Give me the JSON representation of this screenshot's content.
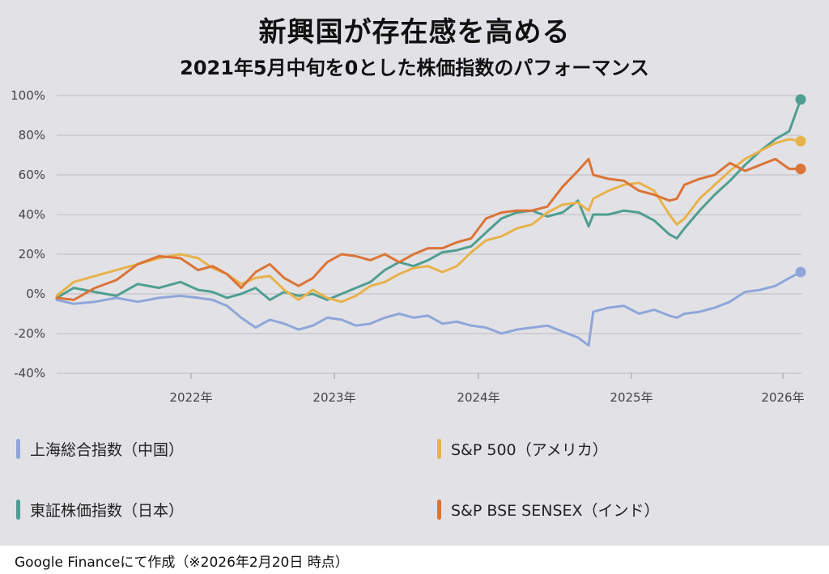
{
  "header": {
    "title": "新興国が存在感を高める",
    "subtitle": "2021年5月中旬を0とした株価指数のパフォーマンス"
  },
  "footer": {
    "source": "Google Financeにて作成（※2026年2月20日 時点）"
  },
  "chart_data": {
    "type": "line",
    "title": "新興国が存在感を高める",
    "subtitle": "2021年5月中旬を0とした株価指数のパフォーマンス",
    "xlabel": "",
    "ylabel": "",
    "ylim": [
      -40,
      100
    ],
    "xlim": [
      2021.37,
      2026.14
    ],
    "grid": true,
    "legend_position": "bottom",
    "y_ticks": [
      "100%",
      "80%",
      "60%",
      "40%",
      "20%",
      "0%",
      "-20%",
      "-40%"
    ],
    "y_tick_values": [
      100,
      80,
      60,
      40,
      20,
      0,
      -20,
      -40
    ],
    "x_ticks": [
      "2022年",
      "2023年",
      "2024年",
      "2025年",
      "2026年"
    ],
    "x_tick_values": [
      2022,
      2023,
      2024,
      2025,
      2026
    ],
    "x": [
      2021.37,
      2021.45,
      2021.55,
      2021.65,
      2021.75,
      2021.85,
      2021.95,
      2022.05,
      2022.15,
      2022.25,
      2022.35,
      2022.45,
      2022.55,
      2022.65,
      2022.75,
      2022.85,
      2022.95,
      2023.05,
      2023.15,
      2023.25,
      2023.35,
      2023.45,
      2023.55,
      2023.65,
      2023.75,
      2023.85,
      2023.95,
      2024.05,
      2024.15,
      2024.25,
      2024.35,
      2024.45,
      2024.55,
      2024.65,
      2024.72,
      2024.75,
      2024.85,
      2024.95,
      2025.05,
      2025.15,
      2025.25,
      2025.3,
      2025.35,
      2025.45,
      2025.55,
      2025.65,
      2025.75,
      2025.85,
      2025.95,
      2026.05,
      2026.14
    ],
    "series": [
      {
        "name": "上海総合指数（中国）",
        "color": "#8fa6da",
        "values": [
          -3,
          -5,
          -4,
          -2,
          -4,
          -2,
          -1,
          -2,
          -3,
          -6,
          -12,
          -17,
          -13,
          -15,
          -18,
          -16,
          -12,
          -13,
          -16,
          -15,
          -12,
          -10,
          -12,
          -11,
          -15,
          -14,
          -16,
          -17,
          -20,
          -18,
          -17,
          -16,
          -19,
          -22,
          -26,
          -9,
          -7,
          -6,
          -10,
          -8,
          -11,
          -12,
          -10,
          -9,
          -7,
          -4,
          1,
          2,
          4,
          8,
          11
        ]
      },
      {
        "name": "S&P 500（アメリカ）",
        "color": "#e8b24a",
        "values": [
          -1,
          6,
          9,
          12,
          15,
          18,
          20,
          18,
          13,
          10,
          5,
          8,
          9,
          2,
          -3,
          2,
          -2,
          -4,
          -1,
          4,
          6,
          10,
          13,
          14,
          11,
          14,
          21,
          27,
          29,
          33,
          35,
          41,
          45,
          46,
          42,
          48,
          52,
          55,
          56,
          52,
          40,
          35,
          38,
          48,
          55,
          62,
          68,
          72,
          76,
          78,
          77
        ]
      },
      {
        "name": "東証株価指数（日本）",
        "color": "#4f9e91",
        "values": [
          -2,
          3,
          1,
          -1,
          5,
          3,
          6,
          2,
          1,
          -2,
          0,
          3,
          -3,
          1,
          -1,
          0,
          -3,
          0,
          3,
          6,
          12,
          16,
          14,
          17,
          21,
          22,
          24,
          31,
          38,
          41,
          42,
          39,
          41,
          47,
          34,
          40,
          40,
          42,
          41,
          37,
          30,
          28,
          33,
          42,
          50,
          57,
          65,
          72,
          78,
          82,
          98
        ]
      },
      {
        "name": "S&P BSE SENSEX（インド）",
        "color": "#db7436",
        "values": [
          -2,
          -3,
          3,
          7,
          15,
          19,
          18,
          12,
          14,
          10,
          3,
          11,
          15,
          8,
          4,
          8,
          16,
          20,
          19,
          17,
          20,
          16,
          20,
          23,
          23,
          26,
          28,
          38,
          41,
          42,
          42,
          44,
          54,
          62,
          68,
          60,
          58,
          57,
          52,
          50,
          47,
          48,
          55,
          58,
          60,
          66,
          62,
          65,
          68,
          63,
          63
        ]
      }
    ]
  }
}
